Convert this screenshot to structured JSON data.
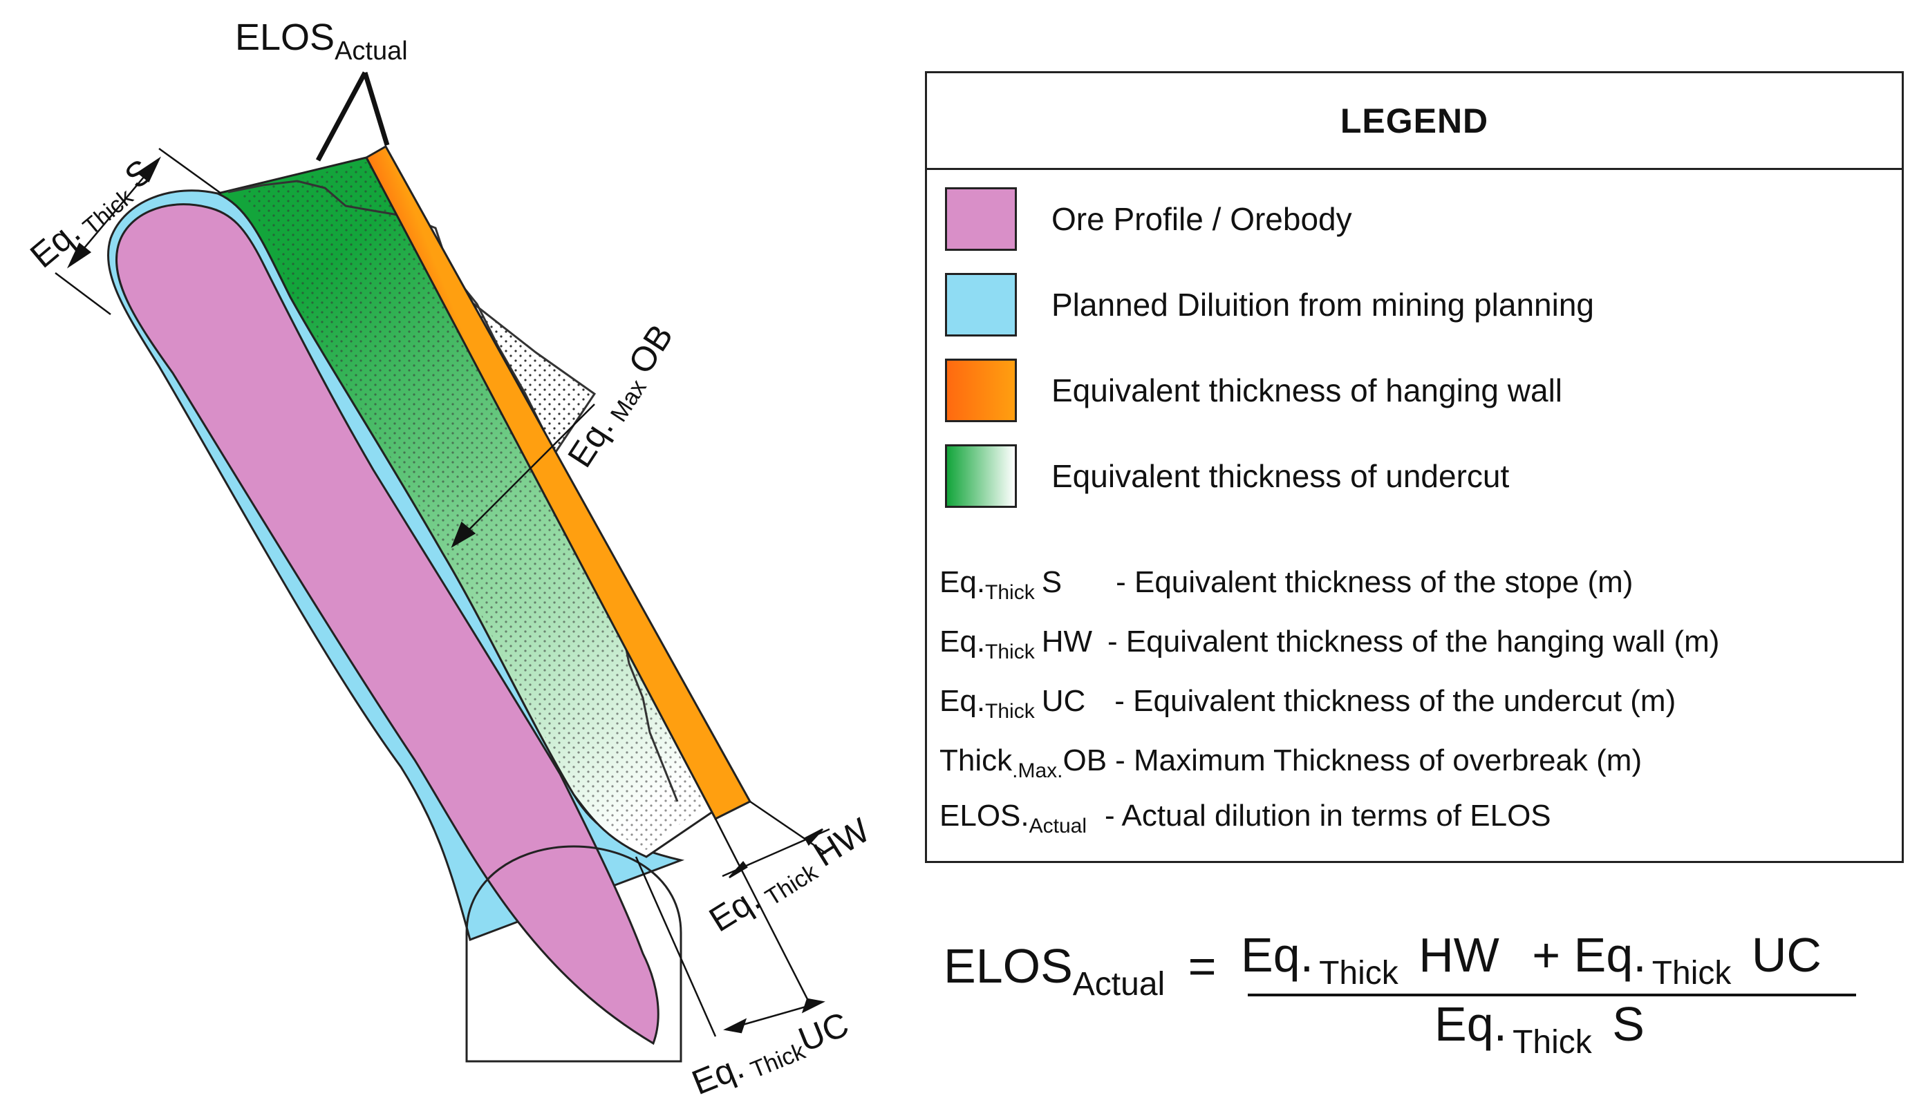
{
  "diagram": {
    "labels": {
      "elos_main": "ELOS",
      "elos_sub": "Actual",
      "eq": "Eq.",
      "thick": "Thick",
      "max": "Max",
      "s": "S",
      "ob": "OB",
      "hw": "HW",
      "uc": "UC"
    },
    "colors": {
      "ore": "#d98fc8",
      "planned": "#8fdcf3",
      "hanging_wall": "#ff7a10",
      "undercut": "#13a53b"
    }
  },
  "legend": {
    "title": "LEGEND",
    "items": [
      {
        "label": "Ore Profile / Orebody",
        "color": "#d98fc8"
      },
      {
        "label": "Planned Diluition from mining planning",
        "color": "#8fdcf3"
      },
      {
        "label": "Equivalent thickness of hanging wall",
        "color": "#ff7a10"
      },
      {
        "label": "Equivalent thickness of undercut",
        "color": "#13a53b"
      }
    ],
    "abbreviations": [
      {
        "pre": "Eq.",
        "sub": "Thick",
        "post": "S",
        "desc": "- Equivalent thickness of  the stope (m)"
      },
      {
        "pre": "Eq.",
        "sub": "Thick",
        "post": "HW",
        "desc": "- Equivalent thickness of the hanging wall (m)"
      },
      {
        "pre": "Eq.",
        "sub": "Thick",
        "post": "UC",
        "desc": "- Equivalent thickness of the undercut (m)"
      },
      {
        "pre": "Thick",
        "sub": ".Max.",
        "post": "OB",
        "desc": "- Maximum Thickness of overbreak (m)"
      },
      {
        "pre": "ELOS.",
        "sub": "Actual",
        "post": "",
        "desc": "-  Actual dilution in terms of ELOS"
      }
    ]
  },
  "formula": {
    "lhs_main": "ELOS",
    "lhs_sub": "Actual",
    "equals": "=",
    "num_a_pre": "Eq.",
    "num_a_sub": "Thick",
    "num_a_post": "HW",
    "plus": "+",
    "num_b_pre": "Eq.",
    "num_b_sub": "Thick",
    "num_b_post": "UC",
    "den_pre": "Eq.",
    "den_sub": "Thick",
    "den_post": "S"
  }
}
